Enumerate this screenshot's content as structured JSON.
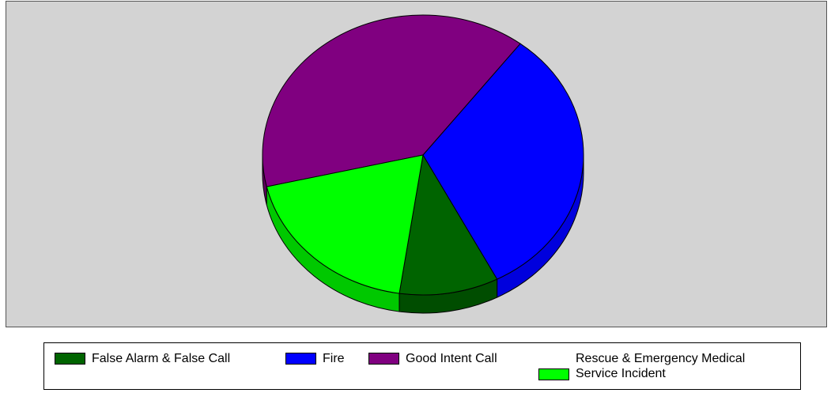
{
  "chart_data": {
    "type": "pie",
    "title": "",
    "categories": [
      "False Alarm & False Call",
      "Fire",
      "Good Intent Call",
      "Rescue & Emergency Medical Service Incident"
    ],
    "values": [
      10,
      32,
      39,
      19
    ],
    "colors": [
      "#006400",
      "#0000ff",
      "#800080",
      "#00ff00"
    ],
    "side_colors": [
      "#004d00",
      "#0000dd",
      "#5e005e",
      "#00c800"
    ],
    "legend": {
      "position": "bottom",
      "entries": [
        {
          "label": "False Alarm & False Call",
          "color": "#006400"
        },
        {
          "label": "Fire",
          "color": "#0000ff"
        },
        {
          "label": "Good Intent Call",
          "color": "#800080"
        },
        {
          "label": "Rescue & Emergency Medical\nService Incident",
          "color": "#00ff00"
        }
      ]
    },
    "style": "3d",
    "background_color": "#d3d3d3"
  }
}
